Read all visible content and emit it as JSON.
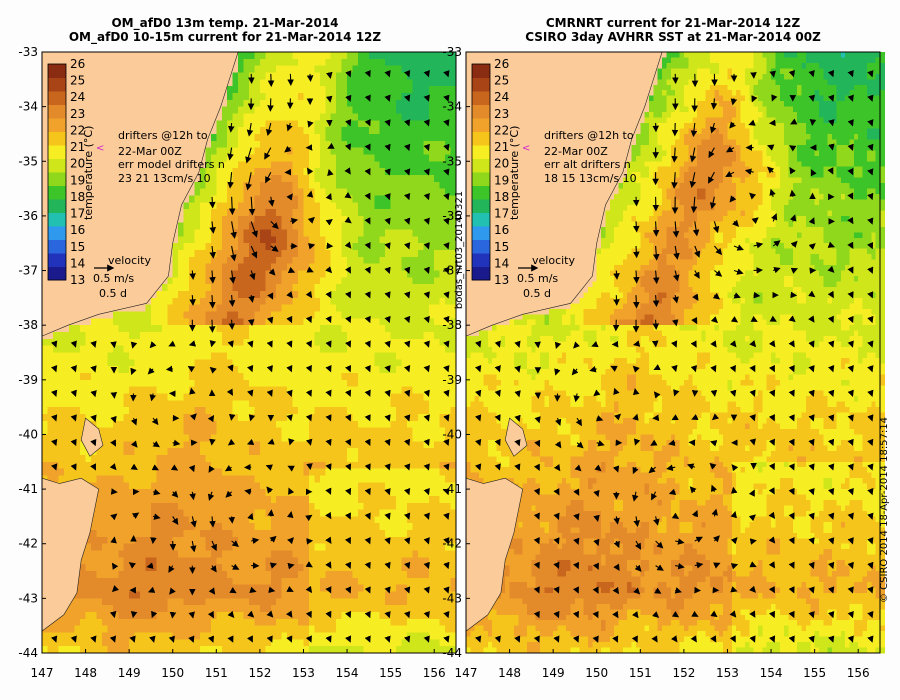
{
  "colors": {
    "land": "#fccb9a",
    "background": "#fdfdfd",
    "arrow": "#000000",
    "drifter": "#d020d0"
  },
  "colormap": [
    "#1a1a8c",
    "#2233bb",
    "#2a66dd",
    "#2f99ee",
    "#22c0b0",
    "#22b55a",
    "#3cc428",
    "#8fd81c",
    "#cfe61a",
    "#f6ee22",
    "#f6c51c",
    "#f0a22a",
    "#e38a2a",
    "#c8661e",
    "#a84416",
    "#8a2c12"
  ],
  "panels": [
    {
      "id": "model",
      "title_line1": "OM_afD0 13m temp. 21-Mar-2014",
      "title_line2": "OM_afD0 10-15m current for 21-Mar-2014 12Z",
      "drifter_text": [
        "drifters @12h to",
        "22-Mar 00Z",
        "err model drifters n",
        "23 21 13cm/s 10"
      ],
      "eddies": [
        {
          "lon": 152.3,
          "lat": -35.6,
          "r": 0.65,
          "sense": 1
        },
        {
          "lon": 149.9,
          "lat": -39.4,
          "r": 0.55,
          "sense": 1
        },
        {
          "lon": 151.6,
          "lat": -41.5,
          "r": 0.65,
          "sense": 1
        },
        {
          "lon": 149.6,
          "lat": -41.9,
          "r": 0.55,
          "sense": -1
        }
      ]
    },
    {
      "id": "observed",
      "title_line1": "CMRNRT current for 21-Mar-2014 12Z",
      "title_line2": "CSIRO 3day AVHRR SST at 21-Mar-2014 00Z",
      "drifter_text": [
        "drifters @12h to",
        "22-Mar 00Z",
        "err alt drifters n",
        "18 15 13cm/s 10"
      ],
      "eddies": [
        {
          "lon": 153.3,
          "lat": -35.9,
          "r": 0.8,
          "sense": 1
        },
        {
          "lon": 150.0,
          "lat": -39.4,
          "r": 0.6,
          "sense": 1
        },
        {
          "lon": 151.8,
          "lat": -41.4,
          "r": 0.75,
          "sense": 1
        }
      ]
    }
  ],
  "colorbar": {
    "label": "temperature (°C)",
    "ticks": [
      "13",
      "14",
      "15",
      "16",
      "17",
      "18",
      "19",
      "20",
      "21",
      "22",
      "23",
      "24",
      "25",
      "26"
    ],
    "min": 13,
    "max": 26
  },
  "velocity_key": {
    "label": "velocity",
    "speed": "0.5 m/s",
    "time": "0.5 d"
  },
  "axes": {
    "lon_ticks": [
      147,
      148,
      149,
      150,
      151,
      152,
      153,
      154,
      155,
      156
    ],
    "lat_ticks": [
      -33,
      -34,
      -35,
      -36,
      -37,
      -38,
      -39,
      -40,
      -41,
      -42,
      -43,
      -44
    ],
    "lon_range": [
      147,
      156.5
    ],
    "lat_range": [
      -44,
      -33
    ]
  },
  "side_text_middle": "bodas_nrt03_20140321",
  "side_text_right": "© CSIRO 2014   18-Apr-2014 18:57:14"
}
